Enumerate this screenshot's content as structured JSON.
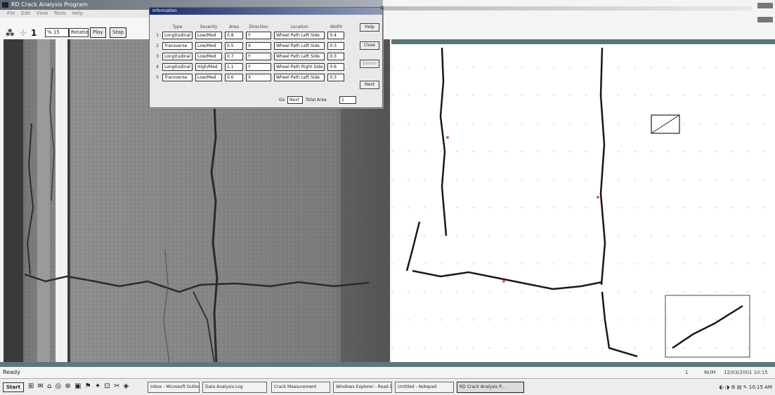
{
  "app": {
    "title": "RD Crack Analysis Program",
    "menu": [
      "File",
      "Edit",
      "View",
      "Tools",
      "Help"
    ]
  },
  "toolbar": {
    "icon_a": "⁂",
    "icon_b": "1",
    "field_a": "% 15",
    "field_b": "Rotation",
    "button_play": "Play",
    "button_stop": "Stop"
  },
  "dialog": {
    "title": "Information",
    "columns": [
      "Type",
      "Severity",
      "Area",
      "Direction",
      "Location",
      "Width"
    ],
    "rows": [
      {
        "num": "1",
        "type": "Longitudinal",
        "severity": "Low/Med",
        "area": "0.8",
        "direction": "Y",
        "location": "Wheel Path Left Side",
        "width": "0.4"
      },
      {
        "num": "2",
        "type": "Transverse",
        "severity": "Low/Med",
        "area": "0.5",
        "direction": "X",
        "location": "Wheel Path Left Side",
        "width": "0.3"
      },
      {
        "num": "3",
        "type": "Longitudinal",
        "severity": "Low/Med",
        "area": "0.7",
        "direction": "Y",
        "location": "Wheel Path Left Side",
        "width": "0.3"
      },
      {
        "num": "4",
        "type": "Longitudinal",
        "severity": "High/Med",
        "area": "1.1",
        "direction": "Y",
        "location": "Wheel Path Right Side",
        "width": "0.6"
      },
      {
        "num": "5",
        "type": "Transverse",
        "severity": "Low/Med",
        "area": "0.6",
        "direction": "X",
        "location": "Wheel Path Left Side",
        "width": "0.3"
      }
    ],
    "side_buttons": [
      "Help",
      "Close",
      "Delete",
      "Next"
    ],
    "footer_label_a": "Go",
    "footer_field_a": "Next",
    "footer_label_b": "Total Area",
    "footer_field_b": "1"
  },
  "status": {
    "left": "Ready",
    "col_a": "1",
    "col_b": "NUM",
    "col_c": "12/03/2001 10:15 AM"
  },
  "taskbar": {
    "start": "Start",
    "quick_icons": "⊞ ✉ ⌂ ◎ ⊕ ▣ ⚑ ✦ ⊡ ✂ ◈",
    "tasks": [
      {
        "label": "Inbox - Microsoft Outlook",
        "active": false
      },
      {
        "label": "Data Analysis Log",
        "active": false
      },
      {
        "label": "Crack Measurement",
        "active": false
      },
      {
        "label": "Windows Explorer - Road Data",
        "active": false
      },
      {
        "label": "Untitled - Notepad",
        "active": false
      },
      {
        "label": "RD Crack Analysis P...",
        "active": true
      }
    ],
    "tray": "◐ ◑ ⚙ ▤ ✎ 10:15 AM"
  }
}
